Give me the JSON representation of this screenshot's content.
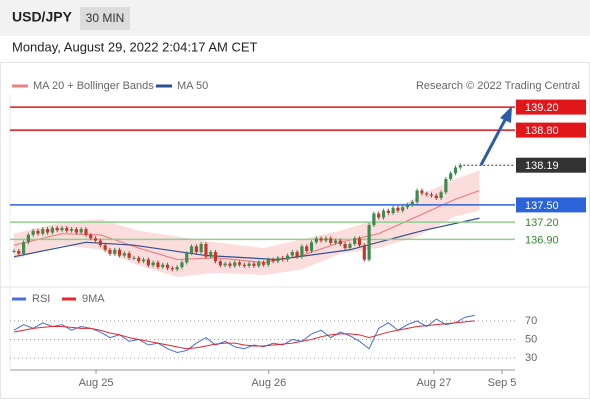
{
  "header": {
    "symbol": "USD/JPY",
    "interval": "30 MIN",
    "timestamp": "Monday, August 29, 2022 2:04:17 AM CET"
  },
  "chart_data": [
    {
      "type": "candlestick",
      "credit": "Research © 2022 Trading Central",
      "xlim": [
        -0.83,
        104.4
      ],
      "ylim": [
        136.16,
        139.41
      ],
      "candles": {
        "up_color": "#3d8b4f",
        "down_color": "#c0392b",
        "values": [
          136.7,
          136.65,
          136.85,
          136.98,
          137.05,
          137.0,
          137.08,
          137.02,
          137.1,
          137.06,
          137.1,
          137.05,
          137.08,
          137.02,
          137.08,
          136.98,
          136.92,
          136.88,
          136.8,
          136.72,
          136.65,
          136.72,
          136.62,
          136.66,
          136.58,
          136.58,
          136.52,
          136.55,
          136.45,
          136.5,
          136.42,
          136.46,
          136.4,
          136.38,
          136.42,
          136.5,
          136.66,
          136.78,
          136.68,
          136.82,
          136.6,
          136.68,
          136.52,
          136.45,
          136.48,
          136.44,
          136.5,
          136.46,
          136.44,
          136.48,
          136.44,
          136.5,
          136.46,
          136.55,
          136.52,
          136.58,
          136.55,
          136.62,
          136.68,
          136.6,
          136.78,
          136.7,
          136.85,
          136.92,
          136.88,
          136.92,
          136.84,
          136.88,
          136.82,
          136.75,
          136.82,
          136.92,
          136.8,
          136.55,
          137.15,
          137.35,
          137.28,
          137.4,
          137.36,
          137.45,
          137.4,
          137.46,
          137.5,
          137.55,
          137.75,
          137.7,
          137.68,
          137.66,
          137.62,
          137.72,
          137.95,
          138.05,
          138.15,
          138.19
        ]
      },
      "series": [
        {
          "name": "MA 20 + Bollinger Bands",
          "color": "#f08080",
          "band_color": "#fbd5d5",
          "x": [
            0,
            10,
            18,
            26,
            34,
            42,
            52,
            60,
            68,
            76,
            84,
            92,
            97
          ],
          "values": [
            136.8,
            137.0,
            136.98,
            136.75,
            136.55,
            136.58,
            136.5,
            136.62,
            136.85,
            137.0,
            137.3,
            137.6,
            137.75
          ],
          "upper": [
            137.0,
            137.2,
            137.25,
            137.05,
            136.95,
            136.85,
            136.75,
            136.9,
            137.05,
            137.25,
            137.65,
            137.95,
            138.1
          ],
          "lower": [
            136.55,
            136.8,
            136.72,
            136.45,
            136.25,
            136.32,
            136.28,
            136.38,
            136.65,
            136.75,
            136.95,
            137.3,
            137.4
          ]
        },
        {
          "name": "MA 50",
          "color": "#2f4f8f",
          "x": [
            0,
            15,
            25,
            40,
            55,
            70,
            85,
            97
          ],
          "values": [
            136.6,
            136.85,
            136.8,
            136.62,
            136.55,
            136.72,
            137.05,
            137.27
          ]
        }
      ],
      "levels": [
        {
          "value": 139.2,
          "label": "139.20",
          "color": "#e0161b",
          "badge": true
        },
        {
          "value": 138.8,
          "label": "138.80",
          "color": "#e0161b",
          "badge": true
        },
        {
          "value": 138.19,
          "label": "138.19",
          "color": "#333333",
          "badge": true,
          "dotted": true
        },
        {
          "value": 137.5,
          "label": "137.50",
          "color": "#2b63d9",
          "badge": true
        },
        {
          "value": 137.2,
          "label": "137.20",
          "color": "#8fce8f",
          "text_color": "#2e8b2e",
          "badge": false
        },
        {
          "value": 136.9,
          "label": "136.90",
          "color": "#8fce8f",
          "text_color": "#2e8b2e",
          "badge": false
        }
      ]
    },
    {
      "type": "line",
      "xlim": [
        -0.83,
        104.4
      ],
      "ylim": [
        19.2,
        81.8
      ],
      "yticks": [
        30,
        50,
        70
      ],
      "xticks": [
        {
          "value": 17.1,
          "label": "Aug 25"
        },
        {
          "value": 53.1,
          "label": "Aug 26"
        },
        {
          "value": 87.5,
          "label": "Aug 27"
        },
        {
          "value": 101.7,
          "label": "Sep 5"
        }
      ],
      "x": [
        0,
        2,
        4,
        6,
        8,
        10,
        12,
        14,
        16,
        18,
        20,
        22,
        24,
        26,
        28,
        30,
        32,
        34,
        36,
        38,
        40,
        42,
        44,
        46,
        48,
        50,
        52,
        54,
        56,
        58,
        60,
        62,
        64,
        66,
        68,
        70,
        72,
        74,
        76,
        78,
        80,
        82,
        84,
        86,
        88,
        90,
        92,
        94,
        96
      ],
      "series": [
        {
          "name": "RSI",
          "color": "#4a6fd6",
          "values": [
            60,
            66,
            62,
            68,
            64,
            66,
            60,
            64,
            62,
            58,
            52,
            55,
            48,
            50,
            44,
            46,
            40,
            36,
            38,
            46,
            52,
            44,
            48,
            42,
            40,
            44,
            42,
            46,
            44,
            50,
            48,
            56,
            60,
            52,
            58,
            54,
            48,
            40,
            62,
            68,
            60,
            66,
            70,
            64,
            72,
            66,
            68,
            74,
            76
          ]
        },
        {
          "name": "9MA",
          "color": "#e0282e",
          "values": [
            58,
            60,
            62,
            63,
            64,
            64,
            63,
            62,
            62,
            60,
            57,
            55,
            52,
            50,
            48,
            46,
            44,
            42,
            40,
            41,
            43,
            45,
            46,
            46,
            44,
            43,
            43,
            44,
            45,
            46,
            48,
            50,
            53,
            55,
            56,
            56,
            55,
            52,
            55,
            58,
            60,
            62,
            64,
            65,
            66,
            67,
            68,
            69,
            70
          ]
        }
      ]
    }
  ]
}
